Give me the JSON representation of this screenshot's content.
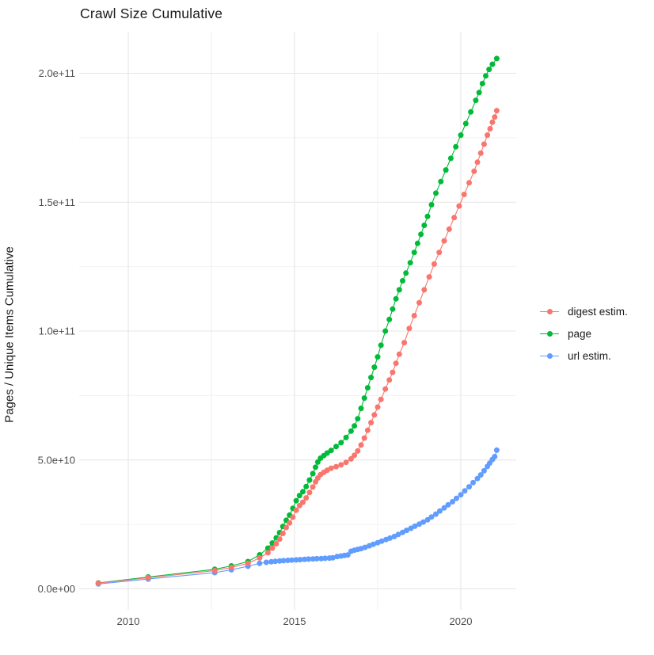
{
  "title": "Crawl Size Cumulative",
  "colors": {
    "background": "#ffffff",
    "grid_major": "#e5e5e5",
    "grid_minor": "#f2f2f2",
    "tick_text": "#4d4d4d",
    "title_text": "#1a1a1a",
    "digest": "#F8766D",
    "page": "#00BA38",
    "url": "#619CFF"
  },
  "chart_data": {
    "type": "scatter",
    "title": "Crawl Size Cumulative",
    "xlabel": "",
    "ylabel": "Pages / Unique Items Cumulative",
    "legend_position": "right",
    "grid": "major+minor",
    "x_range": [
      2008.5,
      2021.7
    ],
    "y_range_e9": [
      -10,
      215
    ],
    "x_ticks": [
      {
        "value": 2010,
        "label": "2010"
      },
      {
        "value": 2015,
        "label": "2015"
      },
      {
        "value": 2020,
        "label": "2020"
      }
    ],
    "x_minor": [
      2012.5,
      2017.5
    ],
    "y_ticks": [
      {
        "value_e9": 0,
        "label": "0.0e+00"
      },
      {
        "value_e9": 50,
        "label": "5.0e+10"
      },
      {
        "value_e9": 100,
        "label": "1.0e+11"
      },
      {
        "value_e9": 150,
        "label": "1.5e+11"
      },
      {
        "value_e9": 200,
        "label": "2.0e+11"
      }
    ],
    "y_minor_e9": [
      25,
      75,
      125,
      175
    ],
    "units": "point values are [year, items_in_billions_e9]",
    "series": [
      {
        "name": "digest estim.",
        "color": "#F8766D",
        "points": [
          [
            2009.1,
            2.2
          ],
          [
            2010.6,
            4.3
          ],
          [
            2012.6,
            7.1
          ],
          [
            2013.1,
            8.3
          ],
          [
            2013.6,
            9.9
          ],
          [
            2013.95,
            12.0
          ],
          [
            2014.2,
            14.0
          ],
          [
            2014.33,
            15.8
          ],
          [
            2014.45,
            17.5
          ],
          [
            2014.55,
            19.3
          ],
          [
            2014.65,
            21.5
          ],
          [
            2014.75,
            23.8
          ],
          [
            2014.85,
            25.6
          ],
          [
            2014.95,
            27.8
          ],
          [
            2015.05,
            30.5
          ],
          [
            2015.15,
            32.3
          ],
          [
            2015.25,
            33.6
          ],
          [
            2015.35,
            35.3
          ],
          [
            2015.45,
            37.4
          ],
          [
            2015.55,
            39.5
          ],
          [
            2015.63,
            41.5
          ],
          [
            2015.7,
            43.0
          ],
          [
            2015.78,
            44.3
          ],
          [
            2015.88,
            45.2
          ],
          [
            2015.98,
            46.0
          ],
          [
            2016.1,
            46.8
          ],
          [
            2016.25,
            47.4
          ],
          [
            2016.4,
            48.1
          ],
          [
            2016.55,
            49.1
          ],
          [
            2016.7,
            50.4
          ],
          [
            2016.8,
            51.8
          ],
          [
            2016.9,
            53.5
          ],
          [
            2017.0,
            55.8
          ],
          [
            2017.1,
            58.5
          ],
          [
            2017.2,
            61.5
          ],
          [
            2017.3,
            64.5
          ],
          [
            2017.4,
            67.5
          ],
          [
            2017.5,
            70.5
          ],
          [
            2017.6,
            73.5
          ],
          [
            2017.73,
            77.5
          ],
          [
            2017.85,
            81.0
          ],
          [
            2017.95,
            84.0
          ],
          [
            2018.05,
            87.5
          ],
          [
            2018.15,
            91.0
          ],
          [
            2018.3,
            95.5
          ],
          [
            2018.45,
            101.0
          ],
          [
            2018.6,
            106.0
          ],
          [
            2018.75,
            111.0
          ],
          [
            2018.9,
            116.0
          ],
          [
            2019.05,
            121.0
          ],
          [
            2019.2,
            126.0
          ],
          [
            2019.35,
            130.5
          ],
          [
            2019.5,
            135.0
          ],
          [
            2019.65,
            139.5
          ],
          [
            2019.8,
            144.0
          ],
          [
            2019.95,
            148.5
          ],
          [
            2020.1,
            153.0
          ],
          [
            2020.25,
            157.5
          ],
          [
            2020.4,
            162.0
          ],
          [
            2020.5,
            165.5
          ],
          [
            2020.6,
            169.0
          ],
          [
            2020.7,
            172.5
          ],
          [
            2020.8,
            176.0
          ],
          [
            2020.88,
            178.5
          ],
          [
            2020.95,
            181.0
          ],
          [
            2021.02,
            183.0
          ],
          [
            2021.08,
            185.5
          ]
        ]
      },
      {
        "name": "page",
        "color": "#00BA38",
        "points": [
          [
            2009.1,
            2.3
          ],
          [
            2010.6,
            4.6
          ],
          [
            2012.6,
            7.6
          ],
          [
            2013.1,
            8.9
          ],
          [
            2013.6,
            10.6
          ],
          [
            2013.95,
            13.2
          ],
          [
            2014.2,
            15.8
          ],
          [
            2014.33,
            17.8
          ],
          [
            2014.45,
            19.8
          ],
          [
            2014.55,
            21.8
          ],
          [
            2014.65,
            24.2
          ],
          [
            2014.75,
            26.6
          ],
          [
            2014.85,
            28.6
          ],
          [
            2014.95,
            31.2
          ],
          [
            2015.05,
            34.2
          ],
          [
            2015.15,
            36.2
          ],
          [
            2015.25,
            37.7
          ],
          [
            2015.35,
            39.7
          ],
          [
            2015.45,
            42.2
          ],
          [
            2015.55,
            44.7
          ],
          [
            2015.63,
            47.2
          ],
          [
            2015.7,
            49.2
          ],
          [
            2015.78,
            50.7
          ],
          [
            2015.88,
            51.7
          ],
          [
            2015.98,
            52.7
          ],
          [
            2016.1,
            53.7
          ],
          [
            2016.25,
            55.2
          ],
          [
            2016.4,
            56.7
          ],
          [
            2016.55,
            58.7
          ],
          [
            2016.7,
            61.2
          ],
          [
            2016.8,
            63.2
          ],
          [
            2016.9,
            66.0
          ],
          [
            2017.0,
            70.0
          ],
          [
            2017.1,
            74.0
          ],
          [
            2017.2,
            78.0
          ],
          [
            2017.3,
            82.0
          ],
          [
            2017.4,
            86.0
          ],
          [
            2017.5,
            90.0
          ],
          [
            2017.6,
            94.5
          ],
          [
            2017.73,
            100.0
          ],
          [
            2017.85,
            104.5
          ],
          [
            2017.95,
            108.5
          ],
          [
            2018.05,
            112.5
          ],
          [
            2018.15,
            116.0
          ],
          [
            2018.25,
            119.5
          ],
          [
            2018.35,
            122.5
          ],
          [
            2018.48,
            126.5
          ],
          [
            2018.6,
            130.5
          ],
          [
            2018.7,
            134.0
          ],
          [
            2018.8,
            137.5
          ],
          [
            2018.9,
            141.0
          ],
          [
            2019.0,
            144.5
          ],
          [
            2019.12,
            149.0
          ],
          [
            2019.25,
            153.5
          ],
          [
            2019.4,
            158.0
          ],
          [
            2019.55,
            162.5
          ],
          [
            2019.7,
            167.0
          ],
          [
            2019.85,
            171.5
          ],
          [
            2020.0,
            176.0
          ],
          [
            2020.15,
            180.5
          ],
          [
            2020.3,
            185.0
          ],
          [
            2020.45,
            189.5
          ],
          [
            2020.55,
            192.5
          ],
          [
            2020.65,
            196.0
          ],
          [
            2020.75,
            199.0
          ],
          [
            2020.85,
            201.5
          ],
          [
            2020.95,
            203.5
          ],
          [
            2021.08,
            205.7
          ]
        ]
      },
      {
        "name": "url estim.",
        "color": "#619CFF",
        "points": [
          [
            2009.1,
            1.9
          ],
          [
            2010.6,
            3.8
          ],
          [
            2012.6,
            6.3
          ],
          [
            2013.1,
            7.4
          ],
          [
            2013.6,
            8.8
          ],
          [
            2013.95,
            9.9
          ],
          [
            2014.15,
            10.3
          ],
          [
            2014.3,
            10.5
          ],
          [
            2014.42,
            10.65
          ],
          [
            2014.55,
            10.8
          ],
          [
            2014.67,
            10.95
          ],
          [
            2014.8,
            11.05
          ],
          [
            2014.92,
            11.15
          ],
          [
            2015.05,
            11.25
          ],
          [
            2015.17,
            11.35
          ],
          [
            2015.3,
            11.45
          ],
          [
            2015.42,
            11.55
          ],
          [
            2015.55,
            11.6
          ],
          [
            2015.67,
            11.7
          ],
          [
            2015.8,
            11.75
          ],
          [
            2015.92,
            11.85
          ],
          [
            2016.05,
            11.95
          ],
          [
            2016.15,
            12.05
          ],
          [
            2016.28,
            12.55
          ],
          [
            2016.4,
            12.75
          ],
          [
            2016.5,
            12.95
          ],
          [
            2016.6,
            13.15
          ],
          [
            2016.7,
            14.6
          ],
          [
            2016.8,
            15.0
          ],
          [
            2016.9,
            15.3
          ],
          [
            2017.0,
            15.6
          ],
          [
            2017.12,
            16.1
          ],
          [
            2017.25,
            16.7
          ],
          [
            2017.37,
            17.3
          ],
          [
            2017.5,
            17.9
          ],
          [
            2017.62,
            18.5
          ],
          [
            2017.75,
            19.1
          ],
          [
            2017.87,
            19.7
          ],
          [
            2018.0,
            20.3
          ],
          [
            2018.12,
            21.1
          ],
          [
            2018.25,
            21.9
          ],
          [
            2018.37,
            22.7
          ],
          [
            2018.5,
            23.5
          ],
          [
            2018.62,
            24.3
          ],
          [
            2018.75,
            25.1
          ],
          [
            2018.87,
            25.9
          ],
          [
            2019.0,
            26.8
          ],
          [
            2019.12,
            27.9
          ],
          [
            2019.25,
            29.0
          ],
          [
            2019.37,
            30.2
          ],
          [
            2019.5,
            31.4
          ],
          [
            2019.62,
            32.6
          ],
          [
            2019.75,
            33.8
          ],
          [
            2019.87,
            35.1
          ],
          [
            2020.0,
            36.5
          ],
          [
            2020.12,
            38.0
          ],
          [
            2020.25,
            39.6
          ],
          [
            2020.37,
            41.2
          ],
          [
            2020.5,
            42.8
          ],
          [
            2020.6,
            44.2
          ],
          [
            2020.7,
            45.8
          ],
          [
            2020.8,
            47.5
          ],
          [
            2020.87,
            48.8
          ],
          [
            2020.95,
            50.2
          ],
          [
            2021.02,
            51.3
          ],
          [
            2021.08,
            53.8
          ]
        ]
      }
    ]
  },
  "legend": {
    "items": [
      {
        "label": "digest estim."
      },
      {
        "label": "page"
      },
      {
        "label": "url estim."
      }
    ]
  }
}
